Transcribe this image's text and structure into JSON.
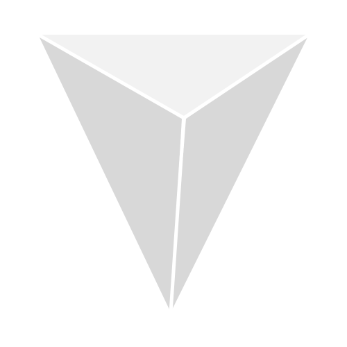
{
  "graphic": {
    "kind": "inverted-triangular-pyramid",
    "colors": {
      "background": "#ffffff",
      "top_face": "#f2f2f2",
      "side_faces": "#d8d8d8",
      "edge": "#ffffff"
    }
  }
}
